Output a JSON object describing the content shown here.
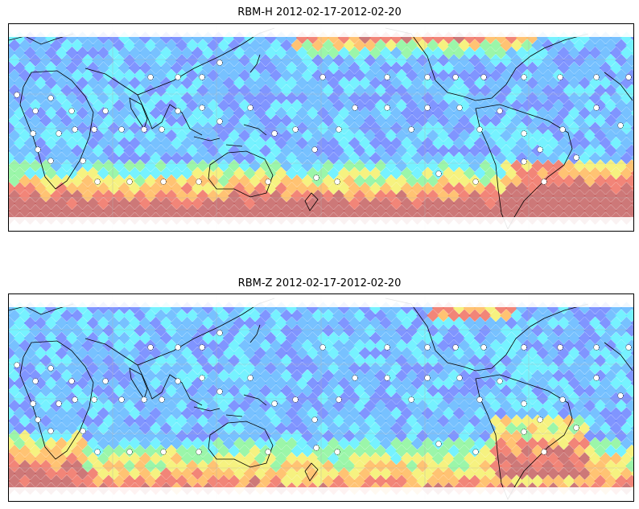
{
  "panels": [
    {
      "title": "RBM-H 2012-02-17-2012-02-20",
      "variant": "H"
    },
    {
      "title": "RBM-Z 2012-02-17-2012-02-20",
      "variant": "Z"
    }
  ],
  "colormap": [
    "#5b5bff",
    "#6a82ff",
    "#5fb6ff",
    "#5ef0ff",
    "#8af59a",
    "#f5f06a",
    "#ffb85a",
    "#f07060",
    "#c46060"
  ],
  "map": {
    "projection": "plate-carree",
    "center_longitude": "180E",
    "gridlines": true,
    "coastlines": true
  }
}
